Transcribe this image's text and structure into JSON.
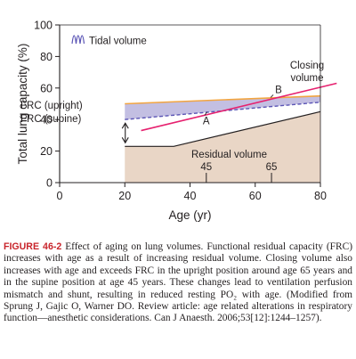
{
  "chart_data": {
    "type": "area",
    "xlabel": "Age (yr)",
    "ylabel": "Total lung capacity (%)",
    "xlim": [
      0,
      80
    ],
    "ylim": [
      0,
      100
    ],
    "xticks": [
      0,
      20,
      40,
      60,
      80
    ],
    "yticks": [
      0,
      20,
      40,
      60,
      80,
      100
    ],
    "grid": false,
    "legend": {
      "label": "Tidal volume",
      "position": "top-left"
    },
    "series": [
      {
        "name": "Residual volume",
        "x": [
          20,
          35,
          80
        ],
        "y": [
          23,
          23,
          45
        ],
        "color": "#e9d6c6"
      },
      {
        "name": "FRC (upright)",
        "x": [
          20,
          80
        ],
        "y": [
          50,
          55
        ],
        "color": "#f2a541"
      },
      {
        "name": "FRC (supine)",
        "x": [
          20,
          80
        ],
        "y": [
          40,
          51
        ],
        "color": "#5b55b5"
      },
      {
        "name": "Closing volume",
        "x": [
          25,
          85
        ],
        "y": [
          33,
          63
        ],
        "color": "#e6216f"
      }
    ],
    "regions": [
      {
        "name": "Tidal volume",
        "between": [
          "FRC (supine)",
          "FRC (upright)"
        ],
        "color": "#bdb8df"
      }
    ],
    "annotations": [
      {
        "text": "FRC (upright)"
      },
      {
        "text": "FRC (supine)"
      },
      {
        "text": "Residual volume"
      },
      {
        "text": "Closing volume"
      },
      {
        "text": "A",
        "x": 45,
        "y": 45
      },
      {
        "text": "B",
        "x": 65,
        "y": 54
      },
      {
        "text": "45",
        "x": 45
      },
      {
        "text": "65",
        "x": 65
      }
    ]
  },
  "legend_label": "Tidal volume",
  "labels": {
    "frc_upright": "FRC (upright)",
    "frc_supine": "FRC (supine)",
    "closing_line1": "Closing",
    "closing_line2": "volume",
    "residual": "Residual volume",
    "point_a": "A",
    "point_b": "B",
    "age_45": "45",
    "age_65": "65"
  },
  "caption": {
    "lead": "FIGURE 46-2",
    "body": " Effect of aging on lung volumes. Functional residual capacity (FRC) increases with age as a result of increasing residual volume. Closing volume also increases with age and exceeds FRC in the upright position around age 65 years and in the supine position at age 45 years. These changes lead to ventilation perfusion mismatch and shunt, resulting in reduced resting PO₂ with age. (Modified from Sprung J, Gajic O, Warner DO. Review article: age related alterations in respiratory function—anesthetic considerations. Can J Anaesth. 2006;53[12]:1244–1257)."
  }
}
